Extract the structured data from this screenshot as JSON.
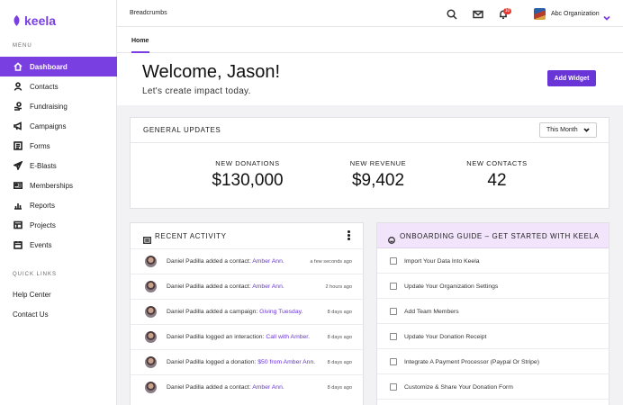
{
  "brand": {
    "name": "keela",
    "color": "#7a3fe0"
  },
  "sidebar": {
    "menu_heading": "MENU",
    "items": [
      {
        "label": "Dashboard",
        "icon": "home-icon",
        "active": true
      },
      {
        "label": "Contacts",
        "icon": "person-icon"
      },
      {
        "label": "Fundraising",
        "icon": "hand-coin-icon"
      },
      {
        "label": "Campaigns",
        "icon": "megaphone-icon"
      },
      {
        "label": "Forms",
        "icon": "form-icon"
      },
      {
        "label": "E-Blasts",
        "icon": "paper-plane-icon"
      },
      {
        "label": "Memberships",
        "icon": "id-card-icon"
      },
      {
        "label": "Reports",
        "icon": "bar-chart-icon"
      },
      {
        "label": "Projects",
        "icon": "folder-icon"
      },
      {
        "label": "Events",
        "icon": "calendar-icon"
      }
    ],
    "quick_heading": "QUICK LINKS",
    "quick_links": [
      "Help Center",
      "Contact Us"
    ]
  },
  "header": {
    "breadcrumbs": "Breadcrumbs",
    "notification_count": "10",
    "org_name": "Abc Organization"
  },
  "tabs": {
    "home": "Home"
  },
  "welcome": {
    "title": "Welcome, Jason!",
    "subtitle": "Let's create impact today.",
    "add_widget": "Add Widget"
  },
  "updates": {
    "title": "GENERAL UPDATES",
    "period": "This Month",
    "stats": [
      {
        "label": "NEW DONATIONS",
        "value": "$130,000"
      },
      {
        "label": "NEW REVENUE",
        "value": "$9,402"
      },
      {
        "label": "NEW CONTACTS",
        "value": "42"
      }
    ]
  },
  "activity": {
    "title": "RECENT ACTIVITY",
    "rows": [
      {
        "text": "Daniel Padilla added a contact: ",
        "link": "Amber Ann.",
        "time": "a few seconds ago"
      },
      {
        "text": "Daniel Padilla added a contact: ",
        "link": "Amber Ann.",
        "time": "2 hours ago"
      },
      {
        "text": "Daniel Padilla added a campaign: ",
        "link": "Giving Tuesday.",
        "time": "8 days ago"
      },
      {
        "text": "Daniel Padilla logged an interaction: ",
        "link": "Call with Amber.",
        "time": "8 days ago"
      },
      {
        "text": "Daniel Padilla logged a donation: ",
        "link": "$50 from Amber Ann.",
        "time": "8 days ago"
      },
      {
        "text": "Daniel Padilla added a contact: ",
        "link": "Amber Ann.",
        "time": "8 days ago"
      }
    ]
  },
  "onboarding": {
    "title": "ONBOARDING GUIDE – GET STARTED WITH KEELA",
    "items": [
      "Import Your Data Into Keela",
      "Update Your Organization Settings",
      "Add Team Members",
      "Update Your Donation Receipt",
      "Integrate A Payment Processor (Paypal Or Stripe)",
      "Customize & Share Your Donation Form"
    ]
  }
}
